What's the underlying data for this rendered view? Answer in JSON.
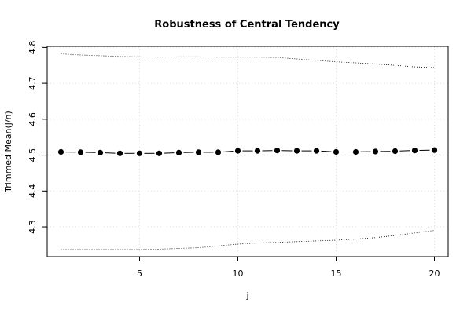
{
  "chart_data": {
    "type": "line",
    "title": "Robustness of Central Tendency",
    "xlabel": "j",
    "ylabel": "Trimmed Mean(j/n)",
    "xlim": [
      0.3,
      20.7
    ],
    "ylim": [
      4.217,
      4.803
    ],
    "x_ticks": [
      5,
      10,
      15,
      20
    ],
    "y_ticks": [
      4.3,
      4.4,
      4.5,
      4.6,
      4.7,
      4.8
    ],
    "grid": true,
    "x": [
      1,
      2,
      3,
      4,
      5,
      6,
      7,
      8,
      9,
      10,
      11,
      12,
      13,
      14,
      15,
      16,
      17,
      18,
      19,
      20
    ],
    "series": [
      {
        "values": [
          4.509,
          4.508,
          4.507,
          4.505,
          4.505,
          4.505,
          4.507,
          4.508,
          4.508,
          4.512,
          4.512,
          4.513,
          4.512,
          4.512,
          4.509,
          4.509,
          4.51,
          4.511,
          4.513,
          4.514
        ],
        "style": "points-line"
      },
      {
        "values": [
          4.782,
          4.779,
          4.777,
          4.775,
          4.774,
          4.773,
          4.774,
          4.774,
          4.773,
          4.773,
          4.773,
          4.772,
          4.768,
          4.764,
          4.76,
          4.757,
          4.754,
          4.75,
          4.746,
          4.744
        ],
        "style": "dotted"
      },
      {
        "values": [
          4.237,
          4.237,
          4.237,
          4.237,
          4.237,
          4.238,
          4.24,
          4.242,
          4.247,
          4.252,
          4.255,
          4.257,
          4.259,
          4.261,
          4.263,
          4.266,
          4.27,
          4.276,
          4.283,
          4.29
        ],
        "style": "dotted"
      }
    ]
  }
}
